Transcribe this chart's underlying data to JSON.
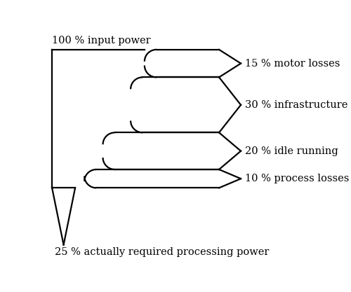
{
  "title_top": "100 % input power",
  "title_bottom": "25 % actually required processing power",
  "flows": [
    {
      "label": "15 % motor losses",
      "value": 15
    },
    {
      "label": "30 % infrastructure",
      "value": 30
    },
    {
      "label": "20 % idle running",
      "value": 20
    },
    {
      "label": "10 % process losses",
      "value": 10
    }
  ],
  "remaining": 25,
  "total": 100,
  "line_color": "#000000",
  "line_width": 1.6,
  "bg_color": "#ffffff",
  "font_size": 10.5
}
